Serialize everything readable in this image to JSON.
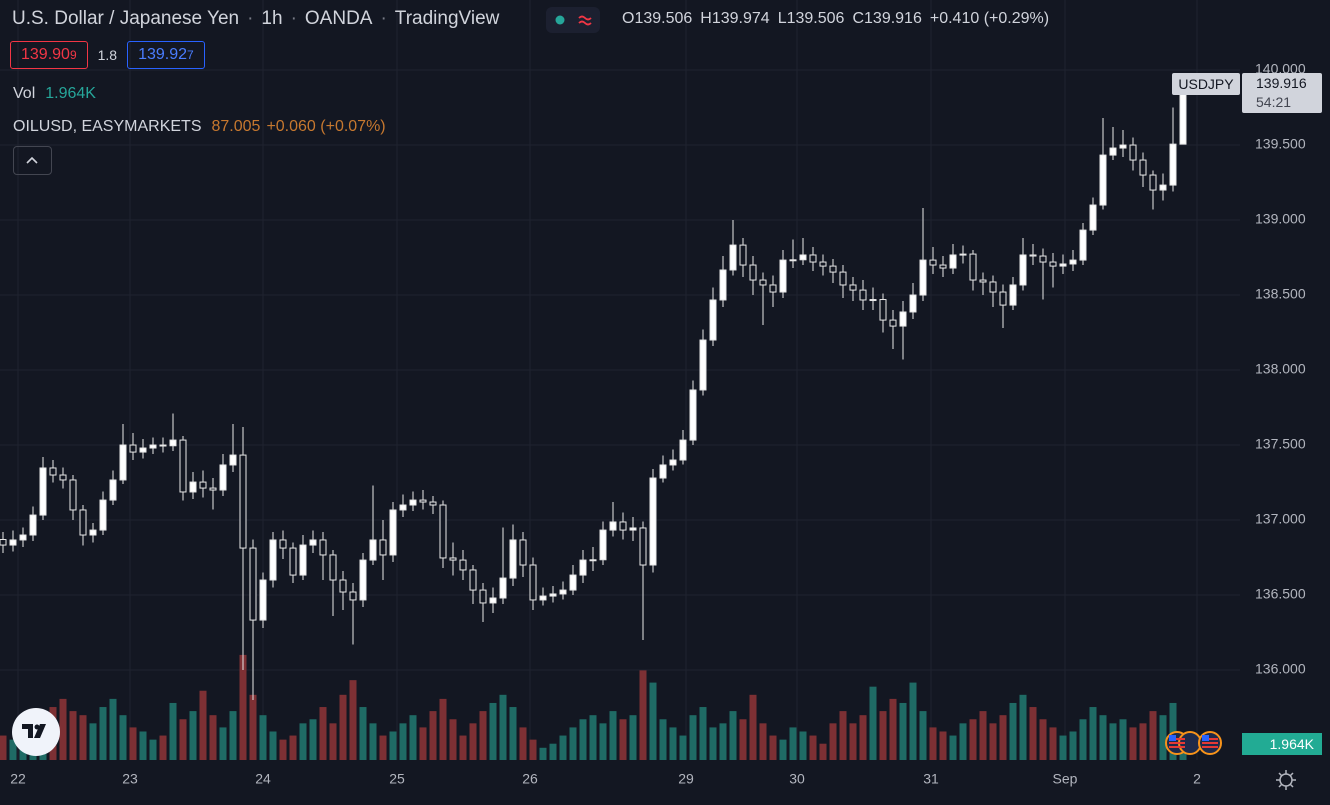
{
  "header": {
    "symbol": "U.S. Dollar / Japanese Yen",
    "interval": "1h",
    "exchange": "OANDA",
    "source": "TradingView"
  },
  "legend": {
    "open_label": "O",
    "open": "139.506",
    "high_label": "H",
    "high": "139.974",
    "low_label": "L",
    "low": "139.506",
    "close_label": "C",
    "close": "139.916",
    "change": "+0.410 (+0.29%)"
  },
  "quote": {
    "bid_main": "139.90",
    "bid_pip": "9",
    "spread": "1.8",
    "ask_main": "139.92",
    "ask_pip": "7"
  },
  "volume_legend": {
    "label": "Vol",
    "value": "1.964K"
  },
  "overlay": {
    "symbol": "OILUSD, EASYMARKETS",
    "price": "87.005",
    "change": "+0.060 (+0.07%)"
  },
  "price_badge": {
    "symbol": "USDJPY",
    "price": "139.916",
    "countdown": "54:21"
  },
  "chart_data": {
    "type": "candlestick",
    "open": [
      136.87,
      136.833,
      136.867,
      136.9,
      137.033,
      137.347,
      137.3,
      137.267,
      137.067,
      136.9,
      136.933,
      137.133,
      137.267,
      137.5,
      137.453,
      137.48,
      137.5,
      137.495,
      137.533,
      137.187,
      137.253,
      137.213,
      137.2,
      137.367,
      137.433,
      136.813,
      136.333,
      136.6,
      136.867,
      136.813,
      136.633,
      136.833,
      136.867,
      136.767,
      136.6,
      136.52,
      136.467,
      136.733,
      136.867,
      136.767,
      137.067,
      137.1,
      137.133,
      137.12,
      137.1,
      136.747,
      136.733,
      136.667,
      136.533,
      136.447,
      136.48,
      136.613,
      136.867,
      136.7,
      136.467,
      136.493,
      136.507,
      136.533,
      136.633,
      136.733,
      136.735,
      136.933,
      136.987,
      136.933,
      136.947,
      136.7,
      137.28,
      137.367,
      137.4,
      137.533,
      137.867,
      138.2,
      138.467,
      138.667,
      138.833,
      138.7,
      138.6,
      138.567,
      138.52,
      138.733,
      138.735,
      138.767,
      138.72,
      138.693,
      138.653,
      138.567,
      138.533,
      138.467,
      138.47,
      138.333,
      138.293,
      138.387,
      138.5,
      138.733,
      138.7,
      138.68,
      138.767,
      138.773,
      138.6,
      138.587,
      138.52,
      138.433,
      138.567,
      138.767,
      138.76,
      138.72,
      138.693,
      138.707,
      138.733,
      138.933,
      139.1,
      139.433,
      139.48,
      139.5,
      139.4,
      139.3,
      139.2,
      139.233,
      139.506
    ],
    "high": [
      136.92,
      136.93,
      136.95,
      137.09,
      137.42,
      137.4,
      137.35,
      137.3,
      137.1,
      136.98,
      137.19,
      137.33,
      137.64,
      137.58,
      137.54,
      137.55,
      137.55,
      137.71,
      137.56,
      137.32,
      137.33,
      137.28,
      137.44,
      137.64,
      137.62,
      136.87,
      136.65,
      136.92,
      136.93,
      136.85,
      136.9,
      136.93,
      136.92,
      136.8,
      136.66,
      136.58,
      136.78,
      137.23,
      137.0,
      137.12,
      137.17,
      137.19,
      137.2,
      137.16,
      137.13,
      136.85,
      136.8,
      136.7,
      136.58,
      136.55,
      136.95,
      136.97,
      136.92,
      136.75,
      136.55,
      136.56,
      136.59,
      136.7,
      136.8,
      136.82,
      136.99,
      137.12,
      137.05,
      137.02,
      136.99,
      137.34,
      137.43,
      137.47,
      137.6,
      137.93,
      138.27,
      138.55,
      138.76,
      139.0,
      138.88,
      138.76,
      138.65,
      138.63,
      138.8,
      138.87,
      138.88,
      138.82,
      138.77,
      138.74,
      138.7,
      138.62,
      138.6,
      138.55,
      138.51,
      138.4,
      138.46,
      138.58,
      139.08,
      138.82,
      138.76,
      138.84,
      138.83,
      138.8,
      138.65,
      138.63,
      138.57,
      138.62,
      138.88,
      138.84,
      138.81,
      138.78,
      138.77,
      138.8,
      138.98,
      139.15,
      139.68,
      139.62,
      139.6,
      139.55,
      139.45,
      139.33,
      139.31,
      139.75,
      139.974
    ],
    "low": [
      136.78,
      136.79,
      136.82,
      136.86,
      137.0,
      137.25,
      137.21,
      137.0,
      136.83,
      136.85,
      136.9,
      137.1,
      137.24,
      137.4,
      137.41,
      137.44,
      137.45,
      137.46,
      137.13,
      137.14,
      137.15,
      137.07,
      137.16,
      137.32,
      136.0,
      135.8,
      136.28,
      136.55,
      136.74,
      136.58,
      136.6,
      136.78,
      136.6,
      136.36,
      136.4,
      136.17,
      136.42,
      136.7,
      136.6,
      136.72,
      137.02,
      137.06,
      137.07,
      137.04,
      136.68,
      136.63,
      136.6,
      136.44,
      136.32,
      136.38,
      136.44,
      136.56,
      136.62,
      136.4,
      136.43,
      136.45,
      136.47,
      136.5,
      136.58,
      136.66,
      136.7,
      136.89,
      136.87,
      136.86,
      136.2,
      136.65,
      137.25,
      137.33,
      137.37,
      137.5,
      137.83,
      138.16,
      138.42,
      138.63,
      138.62,
      138.5,
      138.3,
      138.42,
      138.48,
      138.68,
      138.7,
      138.66,
      138.63,
      138.58,
      138.48,
      138.46,
      138.4,
      138.4,
      138.25,
      138.14,
      138.07,
      138.34,
      138.46,
      138.64,
      138.62,
      138.64,
      138.71,
      138.53,
      138.5,
      138.42,
      138.28,
      138.4,
      138.53,
      138.7,
      138.47,
      138.55,
      138.64,
      138.66,
      138.7,
      138.9,
      139.07,
      139.4,
      139.42,
      139.33,
      139.22,
      139.07,
      139.13,
      139.19,
      139.506
    ],
    "close": [
      136.833,
      136.867,
      136.9,
      137.033,
      137.347,
      137.3,
      137.267,
      137.067,
      136.9,
      136.933,
      137.133,
      137.267,
      137.5,
      137.453,
      137.48,
      137.5,
      137.495,
      137.533,
      137.187,
      137.253,
      137.213,
      137.2,
      137.367,
      137.433,
      136.813,
      136.333,
      136.6,
      136.867,
      136.813,
      136.633,
      136.833,
      136.867,
      136.767,
      136.6,
      136.52,
      136.467,
      136.733,
      136.867,
      136.767,
      137.067,
      137.1,
      137.133,
      137.12,
      137.1,
      136.747,
      136.733,
      136.667,
      136.533,
      136.447,
      136.48,
      136.613,
      136.867,
      136.7,
      136.467,
      136.493,
      136.507,
      136.533,
      136.633,
      136.733,
      136.735,
      136.933,
      136.987,
      136.933,
      136.947,
      136.7,
      137.28,
      137.367,
      137.4,
      137.533,
      137.867,
      138.2,
      138.467,
      138.667,
      138.833,
      138.7,
      138.6,
      138.567,
      138.52,
      138.733,
      138.735,
      138.767,
      138.72,
      138.693,
      138.653,
      138.567,
      138.533,
      138.467,
      138.47,
      138.333,
      138.293,
      138.387,
      138.5,
      138.733,
      138.7,
      138.68,
      138.767,
      138.773,
      138.6,
      138.587,
      138.52,
      138.433,
      138.567,
      138.767,
      138.76,
      138.72,
      138.693,
      138.707,
      138.733,
      138.933,
      139.1,
      139.433,
      139.48,
      139.5,
      139.4,
      139.3,
      139.2,
      139.233,
      139.506,
      139.916
    ],
    "volume": [
      3000,
      2500,
      3500,
      4000,
      5500,
      6500,
      7500,
      6000,
      5500,
      4500,
      6500,
      7500,
      5500,
      4000,
      3500,
      2500,
      3000,
      7000,
      5000,
      6000,
      8500,
      5500,
      4000,
      6000,
      12900,
      8000,
      5500,
      3500,
      2500,
      3000,
      4500,
      5000,
      6500,
      4500,
      8000,
      9800,
      6500,
      4500,
      3000,
      3500,
      4500,
      5500,
      4000,
      6000,
      7500,
      5000,
      3000,
      4500,
      6000,
      7000,
      8000,
      6500,
      4000,
      2500,
      1500,
      2000,
      3000,
      4000,
      5000,
      5500,
      4500,
      6000,
      5000,
      5500,
      11000,
      9500,
      5000,
      4000,
      3000,
      5500,
      6500,
      4000,
      4500,
      6000,
      5000,
      8000,
      4500,
      3000,
      2500,
      4000,
      3500,
      3000,
      2000,
      4500,
      6000,
      4500,
      5500,
      9000,
      6000,
      7500,
      7000,
      9500,
      6000,
      4000,
      3500,
      3000,
      4500,
      5000,
      6000,
      4500,
      5500,
      7000,
      8000,
      6500,
      5000,
      4000,
      3000,
      3500,
      5000,
      6500,
      5500,
      4500,
      5000,
      4000,
      4500,
      6000,
      5500,
      7000,
      1964
    ],
    "xlim": [
      0,
      118
    ],
    "xticks": [
      {
        "value": 1.5,
        "label": "22"
      },
      {
        "value": 12.7,
        "label": "23"
      },
      {
        "value": 26,
        "label": "24"
      },
      {
        "value": 39.4,
        "label": "25"
      },
      {
        "value": 52.7,
        "label": "26"
      },
      {
        "value": 68.3,
        "label": "29"
      },
      {
        "value": 79.4,
        "label": "30"
      },
      {
        "value": 92.8,
        "label": "31"
      },
      {
        "value": 106.2,
        "label": "Sep"
      },
      {
        "value": 119.4,
        "label": "2"
      }
    ],
    "ylim": [
      135.4,
      140.467
    ],
    "yticks": [
      {
        "value": 136,
        "label": "136.000"
      },
      {
        "value": 136.5,
        "label": "136.500"
      },
      {
        "value": 137,
        "label": "137.000"
      },
      {
        "value": 137.5,
        "label": "137.500"
      },
      {
        "value": 138,
        "label": "138.000"
      },
      {
        "value": 138.5,
        "label": "138.500"
      },
      {
        "value": 139,
        "label": "139.000"
      },
      {
        "value": 139.5,
        "label": "139.500"
      },
      {
        "value": 140,
        "label": "140.000"
      }
    ],
    "volume_ylim": [
      0,
      27000
    ],
    "grid": true,
    "up_color": "#ffffff",
    "down_color": "#131722",
    "wick_color": "#e8e8e8",
    "volume_up_color": "#1f6b65",
    "volume_down_color": "#7d3034"
  }
}
